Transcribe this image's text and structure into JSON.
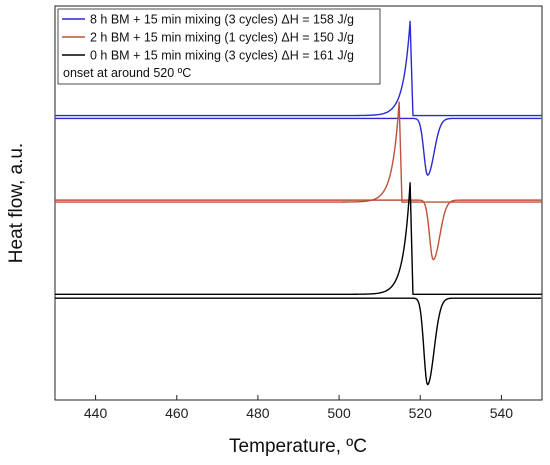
{
  "chart_data": {
    "type": "line",
    "xlabel": "Temperature, ºC",
    "ylabel": "Heat flow, a.u.",
    "xlim": [
      430,
      550
    ],
    "xticks": [
      440,
      460,
      480,
      500,
      520,
      540
    ],
    "y_ticks_shown": false,
    "grid": false,
    "legend_position": "top-left",
    "annotation": "onset at around 520 ºC",
    "series": [
      {
        "name": "8 h BM + 15 min mixing (3 cycles) ΔH = 158 J/g",
        "color": "#2a2ad0",
        "baseline_heating": 0.93,
        "baseline_cooling": 0.915,
        "exotherm_peak_x": 517.5,
        "exotherm_peak_y": 1.42,
        "endotherm_peak_x": 521.8,
        "endotherm_peak_y": 0.62
      },
      {
        "name": "2 h BM + 15 min mixing (1 cycles) ΔH = 150 J/g",
        "color": "#c0503a",
        "baseline_heating": 0.48,
        "baseline_cooling": 0.49,
        "exotherm_peak_x": 514.8,
        "exotherm_peak_y": 1.0,
        "endotherm_peak_x": 523.2,
        "endotherm_peak_y": 0.18
      },
      {
        "name": "0 h BM + 15 min mixing (3 cycles) ΔH = 161 J/g",
        "color": "#000000",
        "baseline_heating": 0.0,
        "baseline_cooling": -0.02,
        "exotherm_peak_x": 517.5,
        "exotherm_peak_y": 0.58,
        "endotherm_peak_x": 521.8,
        "endotherm_peak_y": -0.47
      }
    ]
  }
}
